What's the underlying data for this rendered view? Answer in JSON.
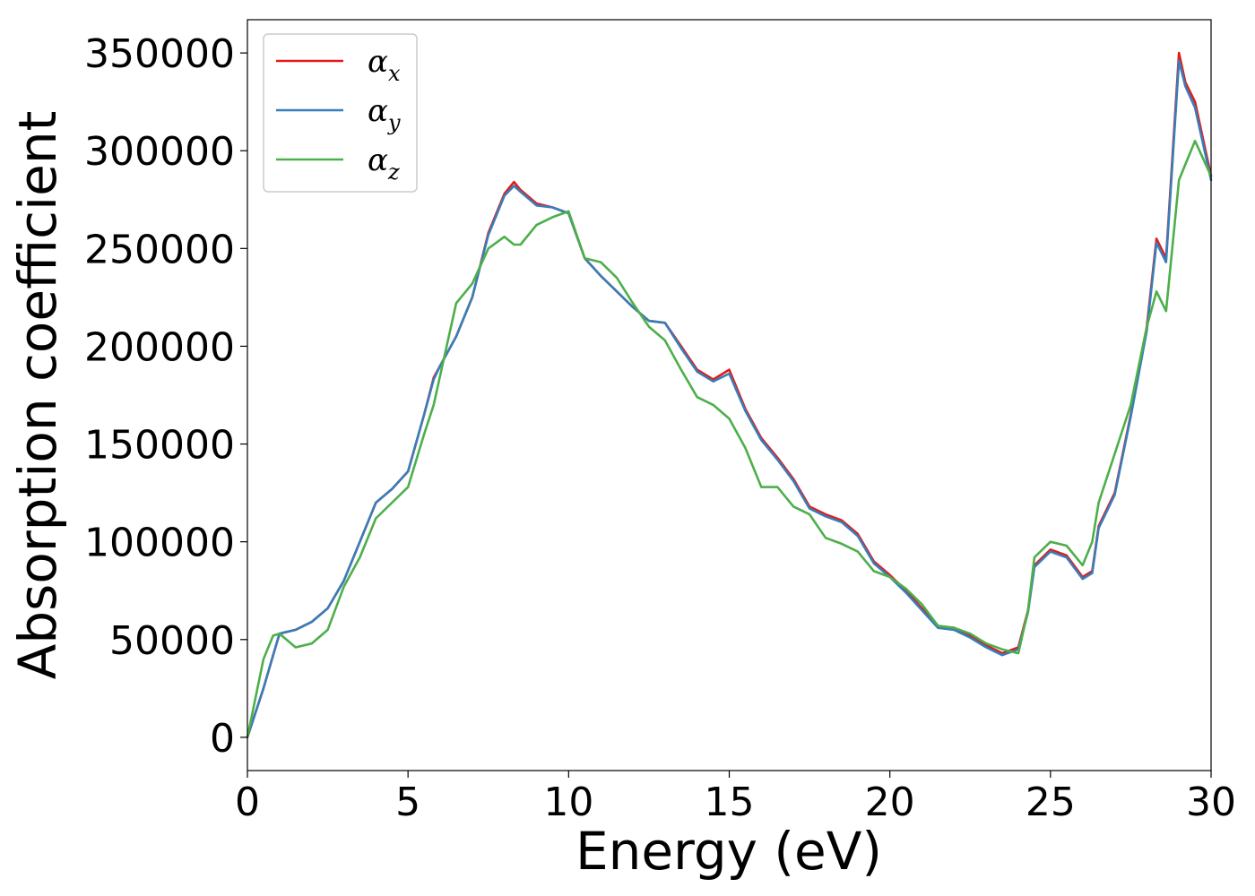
{
  "chart_data": {
    "type": "line",
    "xlabel": "Energy (eV)",
    "ylabel": "Absorption coefficient",
    "xlim": [
      0,
      30
    ],
    "ylim": [
      -17000,
      367000
    ],
    "xticks": [
      0,
      5,
      10,
      15,
      20,
      25,
      30
    ],
    "yticks": [
      0,
      50000,
      100000,
      150000,
      200000,
      250000,
      300000,
      350000
    ],
    "grid": false,
    "legend_position": "top-left",
    "x": [
      0,
      0.5,
      0.8,
      1.0,
      1.5,
      2.0,
      2.5,
      3.0,
      3.5,
      4.0,
      4.5,
      5.0,
      5.5,
      5.8,
      6.0,
      6.5,
      7.0,
      7.5,
      8.0,
      8.3,
      8.5,
      9.0,
      9.5,
      10.0,
      10.5,
      11.0,
      11.5,
      12.0,
      12.5,
      13.0,
      13.5,
      14.0,
      14.5,
      15.0,
      15.5,
      16.0,
      16.5,
      17.0,
      17.5,
      18.0,
      18.5,
      19.0,
      19.5,
      20.0,
      20.5,
      21.0,
      21.5,
      22.0,
      22.5,
      23.0,
      23.5,
      24.0,
      24.3,
      24.5,
      25.0,
      25.5,
      26.0,
      26.3,
      26.5,
      27.0,
      27.5,
      28.0,
      28.3,
      28.6,
      29.0,
      29.2,
      29.5,
      30.0
    ],
    "series": [
      {
        "name": "αx",
        "label_main": "α",
        "label_sub": "x",
        "color": "#e41a1c",
        "values": [
          0,
          25000,
          42000,
          53000,
          55000,
          59000,
          66000,
          80000,
          100000,
          120000,
          127000,
          136000,
          165000,
          184000,
          190000,
          205000,
          225000,
          258000,
          278000,
          284000,
          280000,
          273000,
          271000,
          268000,
          245000,
          236000,
          228000,
          220000,
          213000,
          212000,
          200000,
          188000,
          183000,
          188000,
          168000,
          153000,
          143000,
          132000,
          118000,
          114000,
          111000,
          104000,
          90000,
          83000,
          75000,
          66000,
          57000,
          56000,
          52000,
          47000,
          43000,
          46000,
          65000,
          88000,
          96000,
          93000,
          82000,
          85000,
          108000,
          125000,
          165000,
          210000,
          255000,
          245000,
          350000,
          335000,
          325000,
          287000
        ]
      },
      {
        "name": "αy",
        "label_main": "α",
        "label_sub": "y",
        "color": "#377eb8",
        "values": [
          0,
          25000,
          42000,
          53000,
          55000,
          59000,
          66000,
          80000,
          100000,
          120000,
          127000,
          136000,
          165000,
          183000,
          190000,
          205000,
          225000,
          257000,
          277000,
          282000,
          279000,
          272000,
          271000,
          268000,
          245000,
          236000,
          228000,
          220000,
          213000,
          212000,
          199000,
          187000,
          182000,
          186000,
          167000,
          152000,
          142000,
          131000,
          117000,
          113000,
          110000,
          103000,
          89000,
          82000,
          74000,
          65000,
          56000,
          55000,
          51000,
          46000,
          42000,
          45000,
          64000,
          87000,
          95000,
          92000,
          81000,
          84000,
          107000,
          124000,
          164000,
          208000,
          253000,
          243000,
          346000,
          333000,
          322000,
          285000
        ]
      },
      {
        "name": "αz",
        "label_main": "α",
        "label_sub": "z",
        "color": "#4daf4a",
        "values": [
          0,
          40000,
          52000,
          53000,
          46000,
          48000,
          55000,
          77000,
          92000,
          112000,
          120000,
          128000,
          155000,
          170000,
          185000,
          222000,
          232000,
          250000,
          256000,
          252000,
          252000,
          262000,
          266000,
          269000,
          245000,
          243000,
          235000,
          222000,
          210000,
          203000,
          188000,
          174000,
          170000,
          163000,
          148000,
          128000,
          128000,
          118000,
          114000,
          102000,
          99000,
          95000,
          85000,
          82000,
          76000,
          68000,
          57000,
          56000,
          53000,
          48000,
          45000,
          43000,
          65000,
          92000,
          100000,
          98000,
          88000,
          100000,
          120000,
          145000,
          170000,
          210000,
          228000,
          218000,
          285000,
          293000,
          305000,
          287000
        ]
      }
    ]
  }
}
